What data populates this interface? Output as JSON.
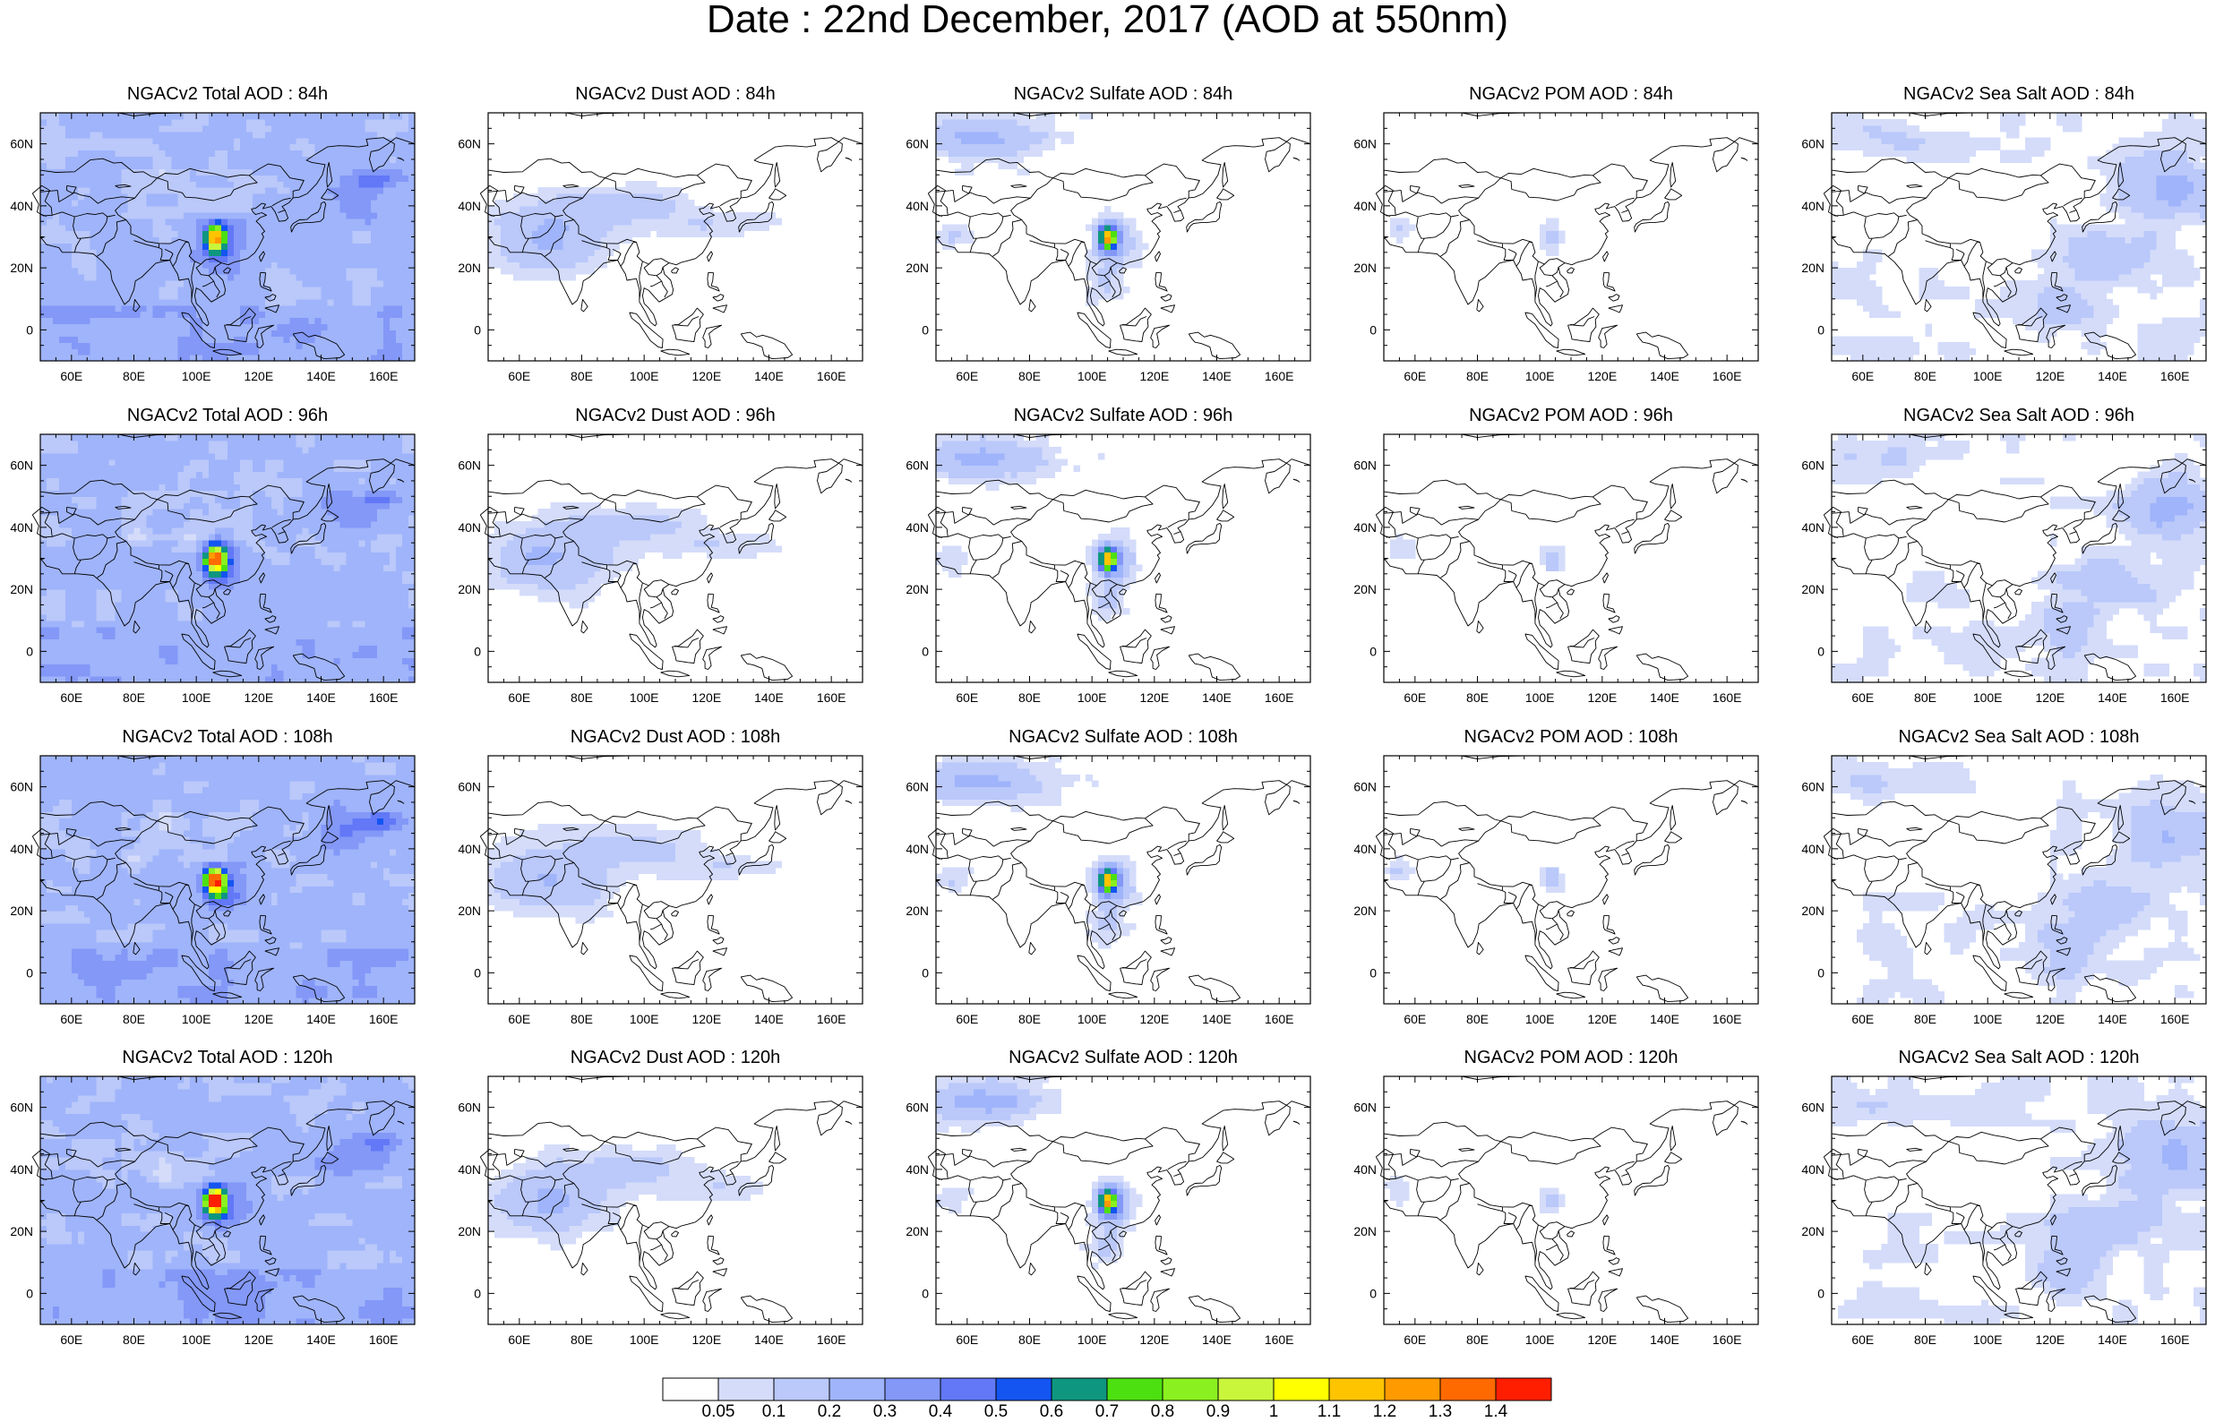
{
  "title": "Date : 22nd December, 2017 (AOD at 550nm)",
  "rows": [
    "84h",
    "96h",
    "108h",
    "120h"
  ],
  "columns": [
    "Total",
    "Dust",
    "Sulfate",
    "POM",
    "Sea Salt"
  ],
  "panel_titles": [
    [
      "NGACv2 Total AOD : 84h",
      "NGACv2 Dust AOD : 84h",
      "NGACv2 Sulfate AOD : 84h",
      "NGACv2 POM AOD : 84h",
      "NGACv2 Sea Salt AOD : 84h"
    ],
    [
      "NGACv2 Total AOD : 96h",
      "NGACv2 Dust AOD : 96h",
      "NGACv2 Sulfate AOD : 96h",
      "NGACv2 POM AOD : 96h",
      "NGACv2 Sea Salt AOD : 96h"
    ],
    [
      "NGACv2 Total AOD : 108h",
      "NGACv2 Dust AOD : 108h",
      "NGACv2 Sulfate AOD : 108h",
      "NGACv2 POM AOD : 108h",
      "NGACv2 Sea Salt AOD : 108h"
    ],
    [
      "NGACv2 Total AOD : 120h",
      "NGACv2 Dust AOD : 120h",
      "NGACv2 Sulfate AOD : 120h",
      "NGACv2 POM AOD : 120h",
      "NGACv2 Sea Salt  AOD : 120h"
    ]
  ],
  "map": {
    "lon_range": [
      50,
      170
    ],
    "lat_range": [
      -10,
      70
    ],
    "lon_ticks": [
      "60E",
      "80E",
      "100E",
      "120E",
      "140E",
      "160E"
    ],
    "lat_ticks": [
      "60N",
      "40N",
      "20N",
      "0"
    ]
  },
  "colorbar": {
    "labels": [
      "0.05",
      "0.1",
      "0.2",
      "0.3",
      "0.4",
      "0.5",
      "0.6",
      "0.7",
      "0.8",
      "0.9",
      "1",
      "1.1",
      "1.2",
      "1.3",
      "1.4"
    ],
    "colors": [
      "#ffffff",
      "#d4dcfa",
      "#bac8fa",
      "#9fb4fa",
      "#8398f7",
      "#6278f7",
      "#1455f2",
      "#0f9680",
      "#4de010",
      "#8bf01f",
      "#c9f53b",
      "#ffff00",
      "#ffc400",
      "#ff9a00",
      "#ff6a00",
      "#ff1e00"
    ]
  }
}
